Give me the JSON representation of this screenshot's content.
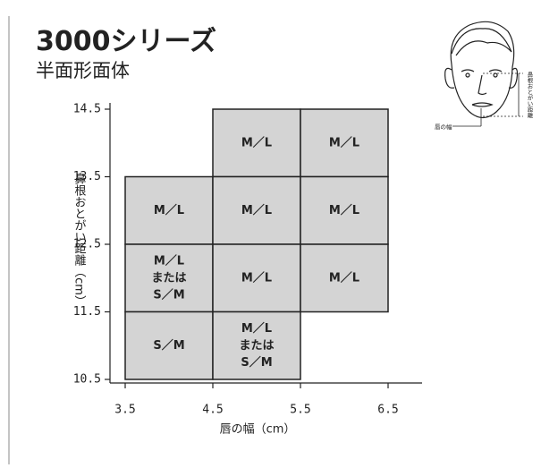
{
  "chart_data": {
    "type": "grid",
    "title": "3000シリーズ",
    "subtitle": "半面形面体",
    "x_label": "唇の幅（cm）",
    "y_label": "鼻根おとがい距離（cm）",
    "xlim": [
      3.5,
      6.5
    ],
    "xticks": [
      3.5,
      4.5,
      5.5,
      6.5
    ],
    "ylim": [
      10.5,
      14.5
    ],
    "yticks": [
      10.5,
      11.5,
      12.5,
      13.5,
      14.5
    ],
    "color": "#d4d4d4",
    "cells": [
      {
        "x0": 4.5,
        "x1": 5.5,
        "y0": 13.5,
        "y1": 14.5,
        "lines": [
          "M／L"
        ]
      },
      {
        "x0": 5.5,
        "x1": 6.5,
        "y0": 13.5,
        "y1": 14.5,
        "lines": [
          "M／L"
        ]
      },
      {
        "x0": 3.5,
        "x1": 4.5,
        "y0": 12.5,
        "y1": 13.5,
        "lines": [
          "M／L"
        ]
      },
      {
        "x0": 4.5,
        "x1": 5.5,
        "y0": 12.5,
        "y1": 13.5,
        "lines": [
          "M／L"
        ]
      },
      {
        "x0": 5.5,
        "x1": 6.5,
        "y0": 12.5,
        "y1": 13.5,
        "lines": [
          "M／L"
        ]
      },
      {
        "x0": 3.5,
        "x1": 4.5,
        "y0": 11.5,
        "y1": 12.5,
        "lines": [
          "M／L",
          "または",
          "S／M"
        ]
      },
      {
        "x0": 4.5,
        "x1": 5.5,
        "y0": 11.5,
        "y1": 12.5,
        "lines": [
          "M／L"
        ]
      },
      {
        "x0": 5.5,
        "x1": 6.5,
        "y0": 11.5,
        "y1": 12.5,
        "lines": [
          "M／L"
        ]
      },
      {
        "x0": 3.5,
        "x1": 4.5,
        "y0": 10.5,
        "y1": 11.5,
        "lines": [
          "S／M"
        ]
      },
      {
        "x0": 4.5,
        "x1": 5.5,
        "y0": 10.5,
        "y1": 11.5,
        "lines": [
          "M／L",
          "または",
          "S／M"
        ]
      }
    ]
  },
  "illustration": {
    "vertical_label": "鼻根おとがい距離",
    "horizontal_label": "唇の幅"
  }
}
